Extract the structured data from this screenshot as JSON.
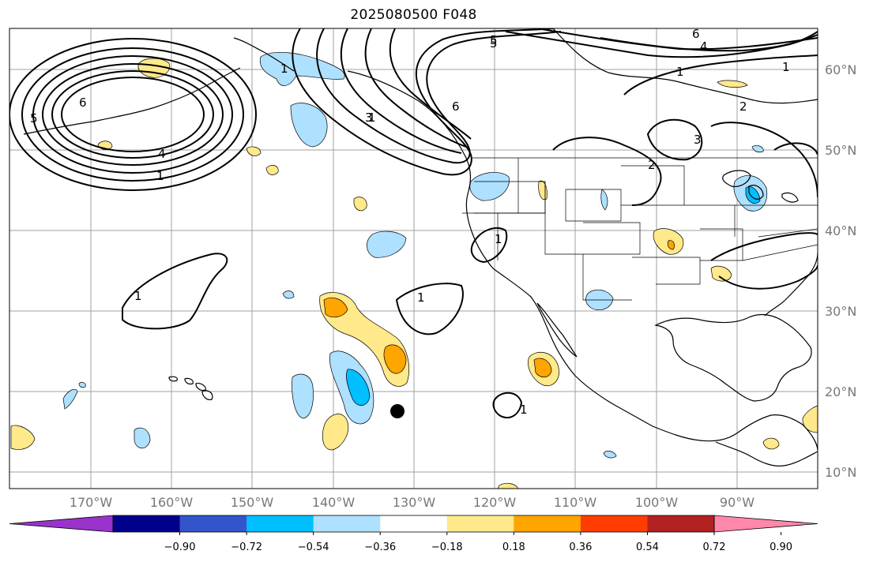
{
  "title": "2025080500 F048",
  "longitude_labels": [
    "170°W",
    "160°W",
    "150°W",
    "140°W",
    "130°W",
    "120°W",
    "110°W",
    "100°W",
    "90°W"
  ],
  "latitude_labels": [
    "60°N",
    "50°N",
    "40°N",
    "30°N",
    "20°N",
    "10°N"
  ],
  "contour_labels": [
    "6",
    "5",
    "4",
    "1",
    "1",
    "6",
    "5",
    "4",
    "1",
    "2",
    "1",
    "2",
    "3",
    "1",
    "5",
    "3",
    "6",
    "1",
    "1",
    "1",
    "1"
  ],
  "colorbar": {
    "colors": [
      "#9a33cc",
      "#00008b",
      "#3355cc",
      "#00bfff",
      "#aee0ff",
      "#ffffff",
      "#ffe98a",
      "#ffa500",
      "#ff3d00",
      "#b22222",
      "#ff88aa"
    ],
    "tick_labels": [
      "−0.90",
      "−0.72",
      "−0.54",
      "−0.36",
      "−0.18",
      "0.18",
      "0.36",
      "0.54",
      "0.72",
      "0.90"
    ]
  },
  "marker": {
    "label": "storm-position",
    "color": "#000000"
  }
}
